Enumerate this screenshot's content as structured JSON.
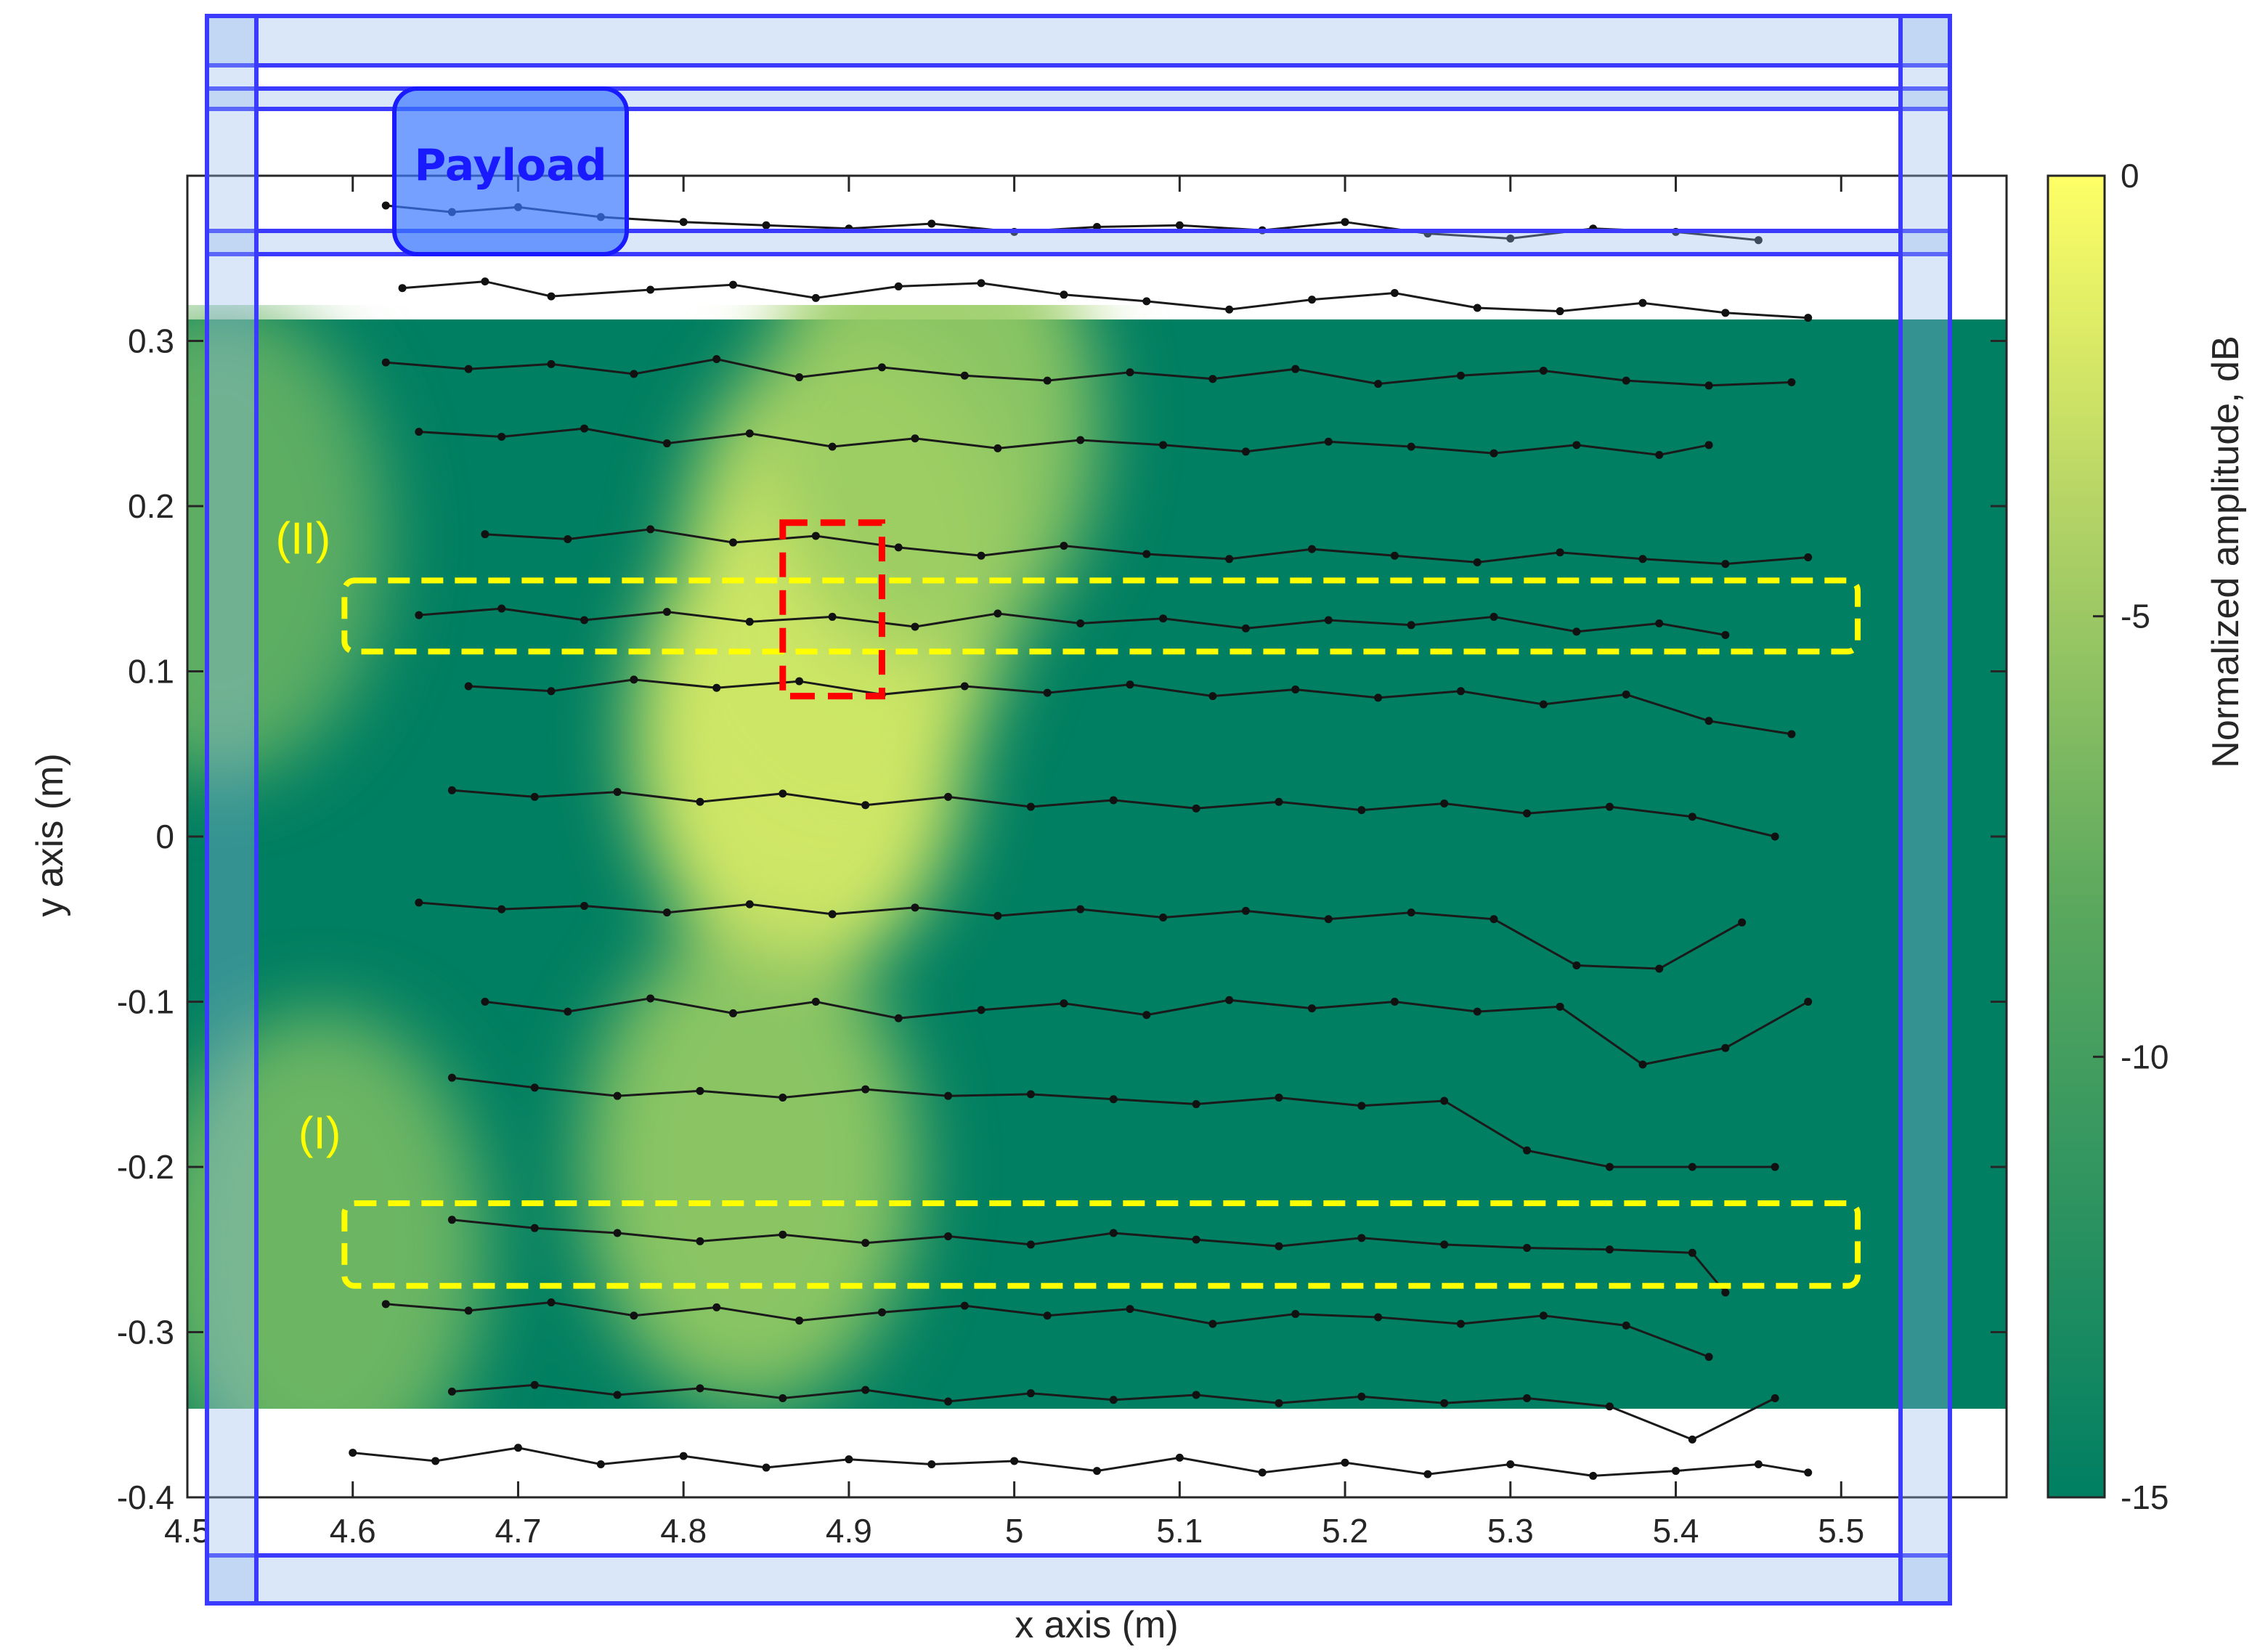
{
  "chart_data": {
    "type": "heatmap",
    "title": "",
    "xlabel": "x axis (m)",
    "ylabel": "y axis (m)",
    "xlim": [
      4.5,
      5.6
    ],
    "ylim": [
      -0.4,
      0.4
    ],
    "x_ticks": [
      4.5,
      4.6,
      4.7,
      4.8,
      4.9,
      5.0,
      5.1,
      5.2,
      5.3,
      5.4,
      5.5
    ],
    "x_tick_labels": [
      "4.5",
      "4.6",
      "4.7",
      "4.8",
      "4.9",
      "5",
      "5.1",
      "5.2",
      "5.3",
      "5.4",
      "5.5"
    ],
    "y_ticks": [
      0.3,
      0.2,
      0.1,
      0,
      -0.1,
      -0.2,
      -0.3,
      -0.4
    ],
    "y_tick_labels": [
      "0.3",
      "0.2",
      "0.1",
      "0",
      "-0.1",
      "-0.2",
      "-0.3",
      "-0.4"
    ],
    "heatmap_extent": {
      "x": [
        4.5,
        5.6
      ],
      "y": [
        -0.348,
        0.313
      ]
    },
    "colorbar": {
      "label": "Normalized amplitude, dB",
      "range": [
        -15,
        0
      ],
      "ticks": [
        0,
        -5,
        -10,
        -15
      ],
      "tick_labels": [
        "0",
        "-5",
        "-10",
        "-15"
      ],
      "low_color": "#007f62",
      "high_color": "#ffff66"
    },
    "hot_spots": [
      {
        "x": 4.87,
        "y": 0.06,
        "amp": -1.5
      },
      {
        "x": 4.9,
        "y": 0.16,
        "amp": -3
      },
      {
        "x": 4.84,
        "y": -0.2,
        "amp": -6
      },
      {
        "x": 4.95,
        "y": 0.25,
        "amp": -6
      },
      {
        "x": 4.52,
        "y": 0.18,
        "amp": -9
      },
      {
        "x": 4.58,
        "y": -0.25,
        "amp": -8
      }
    ],
    "series": [
      {
        "x": [
          4.62,
          4.66,
          4.7,
          4.75,
          4.8,
          4.85,
          4.9,
          4.95,
          5.0,
          5.05,
          5.1,
          5.15,
          5.2,
          5.25,
          5.3,
          5.35,
          5.4,
          5.45
        ],
        "y": [
          0.382,
          0.378,
          0.381,
          0.375,
          0.372,
          0.37,
          0.368,
          0.371,
          0.366,
          0.369,
          0.37,
          0.367,
          0.372,
          0.365,
          0.362,
          0.368,
          0.366,
          0.361
        ]
      },
      {
        "x": [
          4.63,
          4.68,
          4.72,
          4.78,
          4.83,
          4.88,
          4.93,
          4.98,
          5.03,
          5.08,
          5.13,
          5.18,
          5.23,
          5.28,
          5.33,
          5.38,
          5.43,
          5.48
        ],
        "y": [
          0.332,
          0.336,
          0.327,
          0.331,
          0.334,
          0.326,
          0.333,
          0.335,
          0.328,
          0.324,
          0.319,
          0.325,
          0.329,
          0.32,
          0.318,
          0.323,
          0.317,
          0.314
        ]
      },
      {
        "x": [
          4.62,
          4.67,
          4.72,
          4.77,
          4.82,
          4.87,
          4.92,
          4.97,
          5.02,
          5.07,
          5.12,
          5.17,
          5.22,
          5.27,
          5.32,
          5.37,
          5.42,
          5.47
        ],
        "y": [
          0.287,
          0.283,
          0.286,
          0.28,
          0.289,
          0.278,
          0.284,
          0.279,
          0.276,
          0.281,
          0.277,
          0.283,
          0.274,
          0.279,
          0.282,
          0.276,
          0.273,
          0.275
        ]
      },
      {
        "x": [
          4.64,
          4.69,
          4.74,
          4.79,
          4.84,
          4.89,
          4.94,
          4.99,
          5.04,
          5.09,
          5.14,
          5.19,
          5.24,
          5.29,
          5.34,
          5.39,
          5.42
        ],
        "y": [
          0.245,
          0.242,
          0.247,
          0.238,
          0.244,
          0.236,
          0.241,
          0.235,
          0.24,
          0.237,
          0.233,
          0.239,
          0.236,
          0.232,
          0.237,
          0.231,
          0.237
        ]
      },
      {
        "x": [
          4.68,
          4.73,
          4.78,
          4.83,
          4.88,
          4.93,
          4.98,
          5.03,
          5.08,
          5.13,
          5.18,
          5.23,
          5.28,
          5.33,
          5.38,
          5.43,
          5.48
        ],
        "y": [
          0.183,
          0.18,
          0.186,
          0.178,
          0.182,
          0.175,
          0.17,
          0.176,
          0.171,
          0.168,
          0.174,
          0.17,
          0.166,
          0.172,
          0.168,
          0.165,
          0.169
        ]
      },
      {
        "x": [
          4.64,
          4.69,
          4.74,
          4.79,
          4.84,
          4.89,
          4.94,
          4.99,
          5.04,
          5.09,
          5.14,
          5.19,
          5.24,
          5.29,
          5.34,
          5.39,
          5.43
        ],
        "y": [
          0.134,
          0.138,
          0.131,
          0.136,
          0.13,
          0.133,
          0.127,
          0.135,
          0.129,
          0.132,
          0.126,
          0.131,
          0.128,
          0.133,
          0.124,
          0.129,
          0.122
        ]
      },
      {
        "x": [
          4.67,
          4.72,
          4.77,
          4.82,
          4.87,
          4.92,
          4.97,
          5.02,
          5.07,
          5.12,
          5.17,
          5.22,
          5.27,
          5.32,
          5.37,
          5.42,
          5.47
        ],
        "y": [
          0.091,
          0.088,
          0.095,
          0.09,
          0.094,
          0.086,
          0.091,
          0.087,
          0.092,
          0.085,
          0.089,
          0.084,
          0.088,
          0.08,
          0.086,
          0.07,
          0.062
        ]
      },
      {
        "x": [
          4.66,
          4.71,
          4.76,
          4.81,
          4.86,
          4.91,
          4.96,
          5.01,
          5.06,
          5.11,
          5.16,
          5.21,
          5.26,
          5.31,
          5.36,
          5.41,
          5.46
        ],
        "y": [
          0.028,
          0.024,
          0.027,
          0.021,
          0.026,
          0.019,
          0.024,
          0.018,
          0.022,
          0.017,
          0.021,
          0.016,
          0.02,
          0.014,
          0.018,
          0.012,
          0.0
        ]
      },
      {
        "x": [
          4.64,
          4.69,
          4.74,
          4.79,
          4.84,
          4.89,
          4.94,
          4.99,
          5.04,
          5.09,
          5.14,
          5.19,
          5.24,
          5.29,
          5.34,
          5.39,
          5.44
        ],
        "y": [
          -0.04,
          -0.044,
          -0.042,
          -0.046,
          -0.041,
          -0.047,
          -0.043,
          -0.048,
          -0.044,
          -0.049,
          -0.045,
          -0.05,
          -0.046,
          -0.05,
          -0.078,
          -0.08,
          -0.052
        ]
      },
      {
        "x": [
          4.68,
          4.73,
          4.78,
          4.83,
          4.88,
          4.93,
          4.98,
          5.03,
          5.08,
          5.13,
          5.18,
          5.23,
          5.28,
          5.33,
          5.38,
          5.43,
          5.48
        ],
        "y": [
          -0.1,
          -0.106,
          -0.098,
          -0.107,
          -0.1,
          -0.11,
          -0.105,
          -0.101,
          -0.108,
          -0.099,
          -0.104,
          -0.1,
          -0.106,
          -0.103,
          -0.138,
          -0.128,
          -0.1
        ]
      },
      {
        "x": [
          4.66,
          4.71,
          4.76,
          4.81,
          4.86,
          4.91,
          4.96,
          5.01,
          5.06,
          5.11,
          5.16,
          5.21,
          5.26,
          5.31,
          5.36,
          5.41,
          5.46
        ],
        "y": [
          -0.146,
          -0.152,
          -0.157,
          -0.154,
          -0.158,
          -0.153,
          -0.157,
          -0.156,
          -0.159,
          -0.162,
          -0.158,
          -0.163,
          -0.16,
          -0.19,
          -0.2,
          -0.2,
          -0.2
        ]
      },
      {
        "x": [
          4.66,
          4.71,
          4.76,
          4.81,
          4.86,
          4.91,
          4.96,
          5.01,
          5.06,
          5.11,
          5.16,
          5.21,
          5.26,
          5.31,
          5.36,
          5.41,
          5.43
        ],
        "y": [
          -0.232,
          -0.237,
          -0.24,
          -0.245,
          -0.241,
          -0.246,
          -0.242,
          -0.247,
          -0.24,
          -0.244,
          -0.248,
          -0.243,
          -0.247,
          -0.249,
          -0.25,
          -0.252,
          -0.276
        ]
      },
      {
        "x": [
          4.62,
          4.67,
          4.72,
          4.77,
          4.82,
          4.87,
          4.92,
          4.97,
          5.02,
          5.07,
          5.12,
          5.17,
          5.22,
          5.27,
          5.32,
          5.37,
          5.42
        ],
        "y": [
          -0.283,
          -0.287,
          -0.282,
          -0.29,
          -0.285,
          -0.293,
          -0.288,
          -0.284,
          -0.29,
          -0.286,
          -0.295,
          -0.289,
          -0.291,
          -0.295,
          -0.29,
          -0.296,
          -0.315
        ]
      },
      {
        "x": [
          4.66,
          4.71,
          4.76,
          4.81,
          4.86,
          4.91,
          4.96,
          5.01,
          5.06,
          5.11,
          5.16,
          5.21,
          5.26,
          5.31,
          5.36,
          5.41,
          5.46
        ],
        "y": [
          -0.336,
          -0.332,
          -0.338,
          -0.334,
          -0.34,
          -0.335,
          -0.342,
          -0.337,
          -0.341,
          -0.338,
          -0.343,
          -0.339,
          -0.343,
          -0.34,
          -0.345,
          -0.365,
          -0.34
        ]
      },
      {
        "x": [
          4.6,
          4.65,
          4.7,
          4.75,
          4.8,
          4.85,
          4.9,
          4.95,
          5.0,
          5.05,
          5.1,
          5.15,
          5.2,
          5.25,
          5.3,
          5.35,
          5.4,
          5.45,
          5.48
        ],
        "y": [
          -0.373,
          -0.378,
          -0.37,
          -0.38,
          -0.375,
          -0.382,
          -0.377,
          -0.38,
          -0.378,
          -0.384,
          -0.376,
          -0.385,
          -0.379,
          -0.386,
          -0.38,
          -0.387,
          -0.384,
          -0.38,
          -0.385
        ]
      }
    ],
    "annotations": [
      {
        "label": "(II)",
        "label_x": 4.57,
        "label_y": 0.18,
        "box_x": [
          4.595,
          5.51
        ],
        "box_y": [
          0.112,
          0.155
        ],
        "color": "#ffff00"
      },
      {
        "label": "(I)",
        "label_x": 4.58,
        "label_y": -0.18,
        "box_x": [
          4.595,
          5.51
        ],
        "box_y": [
          -0.272,
          -0.222
        ],
        "color": "#ffff00"
      }
    ],
    "highlight": {
      "box_x": [
        4.86,
        4.92
      ],
      "box_y": [
        0.085,
        0.19
      ],
      "color": "#ff0000"
    },
    "payload_label": "Payload"
  }
}
